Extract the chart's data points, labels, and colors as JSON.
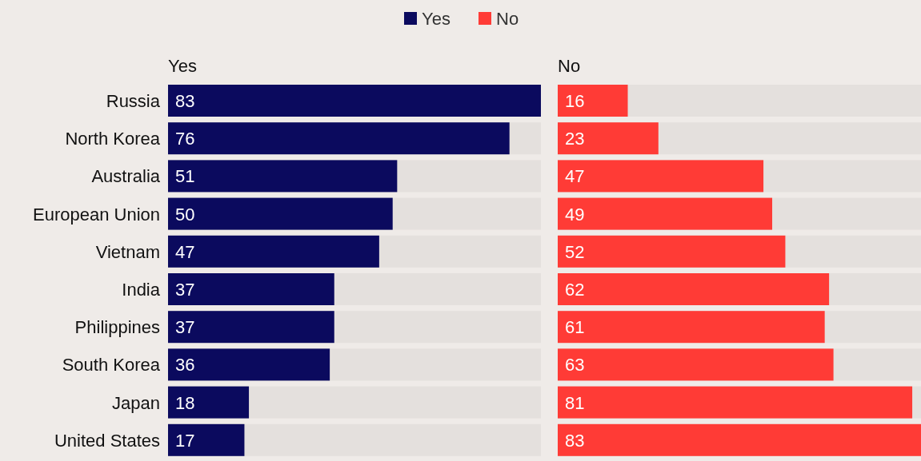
{
  "chart_data": [
    {
      "type": "bar",
      "orientation": "horizontal",
      "title": "Yes",
      "categories": [
        "Russia",
        "North Korea",
        "Australia",
        "European Union",
        "Vietnam",
        "India",
        "Philippines",
        "South Korea",
        "Japan",
        "United States"
      ],
      "series": [
        {
          "name": "Yes",
          "color": "#0b0a5e",
          "values": [
            83,
            76,
            51,
            50,
            47,
            37,
            37,
            36,
            18,
            17
          ]
        }
      ],
      "data_labels": true,
      "legend": "top"
    },
    {
      "type": "bar",
      "orientation": "horizontal",
      "title": "No",
      "categories": [
        null,
        null,
        null,
        null,
        null,
        null,
        null,
        null,
        null,
        null
      ],
      "series": [
        {
          "name": "No",
          "color": "#ff3b36",
          "values": [
            16,
            23,
            47,
            49,
            52,
            62,
            61,
            63,
            81,
            83
          ]
        }
      ],
      "data_labels": true,
      "legend": "top"
    }
  ]
}
